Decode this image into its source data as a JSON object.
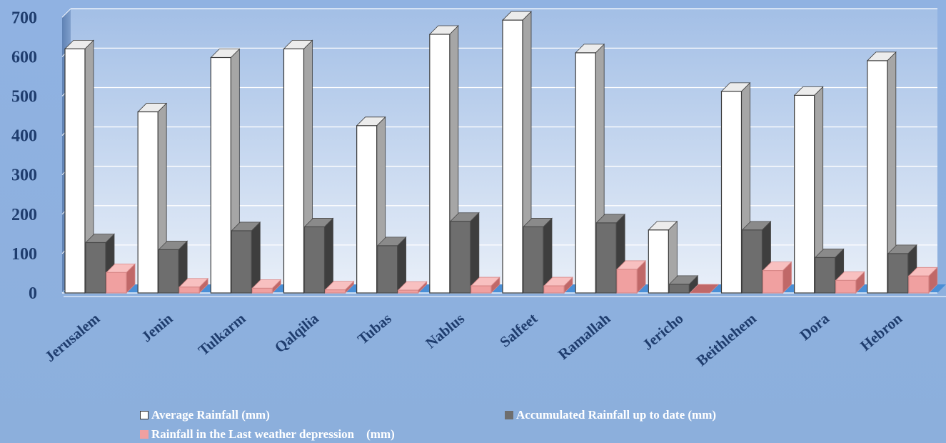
{
  "chart_data": {
    "type": "bar",
    "categories": [
      "Jerusalem",
      "Jenin",
      "Tulkarm",
      "Qalqilia",
      "Tubas",
      "Nablus",
      "Salfeet",
      "Ramallah",
      "Jericho",
      "Beithlehem",
      "Dora",
      "Hebron"
    ],
    "series": [
      {
        "name": "Average Rainfall (mm)",
        "values": [
          620,
          460,
          598,
          620,
          425,
          657,
          693,
          610,
          160,
          512,
          502,
          590
        ],
        "color": "#ffffff"
      },
      {
        "name": "Accumulated Rainfall up to date (mm)",
        "values": [
          128,
          110,
          158,
          168,
          120,
          182,
          168,
          178,
          22,
          160,
          90,
          100
        ],
        "color": "#6e6e6e"
      },
      {
        "name": "Rainfall in the Last weather depression    (mm)",
        "values": [
          52,
          15,
          12,
          8,
          7,
          18,
          18,
          60,
          0,
          57,
          32,
          43
        ],
        "color": "#f0a0a0"
      }
    ],
    "yticks": [
      "0",
      "100",
      "200",
      "300",
      "400",
      "500",
      "600",
      "700"
    ],
    "ylim": [
      0,
      700
    ],
    "grid": true,
    "legend_position": "bottom",
    "style": "3d-clustered-column"
  }
}
